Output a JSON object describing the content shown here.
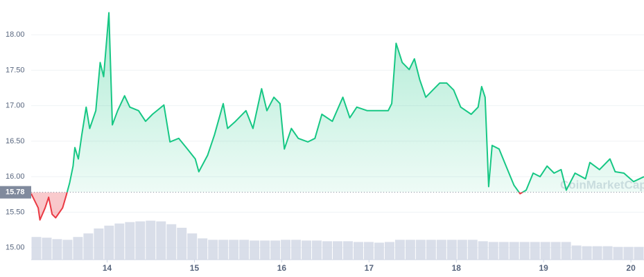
{
  "chart_data": {
    "type": "line",
    "x": [
      13.13,
      13.21,
      13.23,
      13.29,
      13.33,
      13.37,
      13.41,
      13.49,
      13.53,
      13.57,
      13.61,
      13.63,
      13.67,
      13.71,
      13.76,
      13.8,
      13.87,
      13.92,
      13.96,
      14.02,
      14.06,
      14.12,
      14.2,
      14.26,
      14.36,
      14.44,
      14.52,
      14.65,
      14.72,
      14.82,
      14.92,
      15.01,
      15.05,
      15.15,
      15.23,
      15.33,
      15.38,
      15.47,
      15.59,
      15.67,
      15.77,
      15.83,
      15.91,
      15.98,
      16.03,
      16.11,
      16.19,
      16.3,
      16.38,
      16.46,
      16.58,
      16.7,
      16.78,
      16.86,
      16.98,
      17.1,
      17.22,
      17.26,
      17.31,
      17.38,
      17.46,
      17.52,
      17.58,
      17.65,
      17.73,
      17.81,
      17.89,
      17.97,
      18.05,
      18.17,
      18.25,
      18.29,
      18.33,
      18.37,
      18.41,
      18.49,
      18.57,
      18.66,
      18.73,
      18.8,
      18.88,
      18.96,
      19.04,
      19.12,
      19.2,
      19.26,
      19.36,
      19.48,
      19.53,
      19.64,
      19.76,
      19.82,
      19.92,
      20.03,
      20.15
    ],
    "values": [
      15.76,
      15.56,
      15.39,
      15.56,
      15.71,
      15.47,
      15.42,
      15.56,
      15.73,
      15.91,
      16.15,
      16.41,
      16.25,
      16.59,
      16.98,
      16.68,
      16.93,
      17.61,
      17.41,
      18.31,
      16.73,
      16.93,
      17.14,
      16.98,
      16.93,
      16.78,
      16.88,
      17.01,
      16.49,
      16.54,
      16.39,
      16.25,
      16.07,
      16.3,
      16.59,
      17.03,
      16.68,
      16.78,
      16.93,
      16.68,
      17.24,
      16.93,
      17.12,
      17.03,
      16.39,
      16.68,
      16.54,
      16.49,
      16.54,
      16.88,
      16.78,
      17.12,
      16.83,
      16.98,
      16.93,
      16.93,
      16.93,
      17.03,
      17.88,
      17.61,
      17.51,
      17.66,
      17.37,
      17.12,
      17.22,
      17.32,
      17.32,
      17.22,
      16.98,
      16.88,
      16.98,
      17.27,
      17.12,
      15.86,
      16.44,
      16.39,
      16.15,
      15.88,
      15.76,
      15.81,
      16.05,
      16.0,
      16.15,
      16.05,
      16.1,
      15.81,
      16.05,
      15.97,
      16.2,
      16.1,
      16.25,
      16.07,
      16.05,
      15.93,
      16.0
    ],
    "colors": {
      "above": "#16c784",
      "below": "#ea3943"
    },
    "baseline": {
      "value": 15.78,
      "label": "15.78"
    },
    "volume": {
      "color": "#cfd6e4",
      "values": [
        15.15,
        15.14,
        15.12,
        15.11,
        15.15,
        15.2,
        15.27,
        15.31,
        15.34,
        15.36,
        15.37,
        15.38,
        15.37,
        15.33,
        15.28,
        15.2,
        15.13,
        15.11,
        15.11,
        15.11,
        15.11,
        15.1,
        15.1,
        15.1,
        15.11,
        15.11,
        15.1,
        15.1,
        15.09,
        15.09,
        15.09,
        15.08,
        15.08,
        15.07,
        15.08,
        15.11,
        15.11,
        15.11,
        15.11,
        15.11,
        15.11,
        15.11,
        15.11,
        15.09,
        15.08,
        15.08,
        15.08,
        15.08,
        15.08,
        15.08,
        15.08,
        15.08,
        15.03,
        15.02,
        15.02,
        15.02,
        15.01,
        15.01,
        15.01
      ]
    },
    "watermark": "CoinMarketCap",
    "xlim": [
      13.13,
      20.15
    ],
    "xticks": [
      14,
      15,
      16,
      17,
      18,
      19,
      20
    ],
    "ylim": [
      14.83,
      18.49
    ],
    "yticks": [
      {
        "value": 15,
        "label": "15.00"
      },
      {
        "value": 15.5,
        "label": "15.50"
      },
      {
        "value": 16,
        "label": "16.00"
      },
      {
        "value": 16.5,
        "label": "16.50"
      },
      {
        "value": 17,
        "label": "17.00"
      },
      {
        "value": 17.5,
        "label": "17.50"
      },
      {
        "value": 18,
        "label": "18.00"
      }
    ],
    "grid": true
  }
}
